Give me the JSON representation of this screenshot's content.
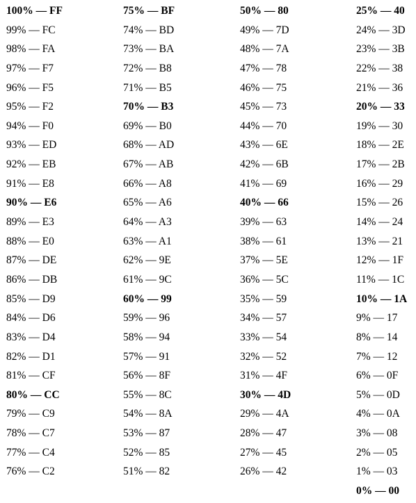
{
  "columns": [
    [
      {
        "text": "100% — FF",
        "bold": true
      },
      {
        "text": "99% — FC",
        "bold": false
      },
      {
        "text": "98% — FA",
        "bold": false
      },
      {
        "text": "97% — F7",
        "bold": false
      },
      {
        "text": "96% — F5",
        "bold": false
      },
      {
        "text": "95% — F2",
        "bold": false
      },
      {
        "text": "94% — F0",
        "bold": false
      },
      {
        "text": "93% — ED",
        "bold": false
      },
      {
        "text": "92% — EB",
        "bold": false
      },
      {
        "text": "91% — E8",
        "bold": false
      },
      {
        "text": "90% — E6",
        "bold": true
      },
      {
        "text": "89% — E3",
        "bold": false
      },
      {
        "text": "88% — E0",
        "bold": false
      },
      {
        "text": "87% — DE",
        "bold": false
      },
      {
        "text": "86% — DB",
        "bold": false
      },
      {
        "text": "85% — D9",
        "bold": false
      },
      {
        "text": "84% — D6",
        "bold": false
      },
      {
        "text": "83% — D4",
        "bold": false
      },
      {
        "text": "82% — D1",
        "bold": false
      },
      {
        "text": "81% — CF",
        "bold": false
      },
      {
        "text": "80% — CC",
        "bold": true
      },
      {
        "text": "79% — C9",
        "bold": false
      },
      {
        "text": "78% — C7",
        "bold": false
      },
      {
        "text": "77% — C4",
        "bold": false
      },
      {
        "text": "76% — C2",
        "bold": false
      }
    ],
    [
      {
        "text": "75% — BF",
        "bold": true
      },
      {
        "text": "74% — BD",
        "bold": false
      },
      {
        "text": "73% — BA",
        "bold": false
      },
      {
        "text": "72% — B8",
        "bold": false
      },
      {
        "text": "71% — B5",
        "bold": false
      },
      {
        "text": "70% — B3",
        "bold": true
      },
      {
        "text": "69% — B0",
        "bold": false
      },
      {
        "text": "68% — AD",
        "bold": false
      },
      {
        "text": "67% — AB",
        "bold": false
      },
      {
        "text": "66% — A8",
        "bold": false
      },
      {
        "text": "65% — A6",
        "bold": false
      },
      {
        "text": "64% — A3",
        "bold": false
      },
      {
        "text": "63% — A1",
        "bold": false
      },
      {
        "text": "62% — 9E",
        "bold": false
      },
      {
        "text": "61% — 9C",
        "bold": false
      },
      {
        "text": "60% — 99",
        "bold": true
      },
      {
        "text": "59% — 96",
        "bold": false
      },
      {
        "text": "58% — 94",
        "bold": false
      },
      {
        "text": "57% — 91",
        "bold": false
      },
      {
        "text": "56% — 8F",
        "bold": false
      },
      {
        "text": "55% — 8C",
        "bold": false
      },
      {
        "text": "54% — 8A",
        "bold": false
      },
      {
        "text": "53% — 87",
        "bold": false
      },
      {
        "text": "52% — 85",
        "bold": false
      },
      {
        "text": "51% — 82",
        "bold": false
      }
    ],
    [
      {
        "text": "50% — 80",
        "bold": true
      },
      {
        "text": "49% — 7D",
        "bold": false
      },
      {
        "text": "48% — 7A",
        "bold": false
      },
      {
        "text": "47% — 78",
        "bold": false
      },
      {
        "text": "46% — 75",
        "bold": false
      },
      {
        "text": "45% — 73",
        "bold": false
      },
      {
        "text": "44% — 70",
        "bold": false
      },
      {
        "text": "43% — 6E",
        "bold": false
      },
      {
        "text": "42% — 6B",
        "bold": false
      },
      {
        "text": "41% — 69",
        "bold": false
      },
      {
        "text": "40% — 66",
        "bold": true
      },
      {
        "text": "39% — 63",
        "bold": false
      },
      {
        "text": "38% — 61",
        "bold": false
      },
      {
        "text": "37% — 5E",
        "bold": false
      },
      {
        "text": "36% — 5C",
        "bold": false
      },
      {
        "text": "35% — 59",
        "bold": false
      },
      {
        "text": "34% — 57",
        "bold": false
      },
      {
        "text": "33% — 54",
        "bold": false
      },
      {
        "text": "32% — 52",
        "bold": false
      },
      {
        "text": "31% — 4F",
        "bold": false
      },
      {
        "text": "30% — 4D",
        "bold": true
      },
      {
        "text": "29% — 4A",
        "bold": false
      },
      {
        "text": "28% — 47",
        "bold": false
      },
      {
        "text": "27% — 45",
        "bold": false
      },
      {
        "text": "26% — 42",
        "bold": false
      }
    ],
    [
      {
        "text": "25% — 40",
        "bold": true
      },
      {
        "text": "24% — 3D",
        "bold": false
      },
      {
        "text": "23% — 3B",
        "bold": false
      },
      {
        "text": "22% — 38",
        "bold": false
      },
      {
        "text": "21% — 36",
        "bold": false
      },
      {
        "text": "20% — 33",
        "bold": true
      },
      {
        "text": "19% — 30",
        "bold": false
      },
      {
        "text": "18% — 2E",
        "bold": false
      },
      {
        "text": "17% — 2B",
        "bold": false
      },
      {
        "text": "16% — 29",
        "bold": false
      },
      {
        "text": "15% — 26",
        "bold": false
      },
      {
        "text": "14% — 24",
        "bold": false
      },
      {
        "text": "13% — 21",
        "bold": false
      },
      {
        "text": "12% — 1F",
        "bold": false
      },
      {
        "text": "11% — 1C",
        "bold": false
      },
      {
        "text": "10% — 1A",
        "bold": true
      },
      {
        "text": "9% — 17",
        "bold": false
      },
      {
        "text": "8% — 14",
        "bold": false
      },
      {
        "text": "7% — 12",
        "bold": false
      },
      {
        "text": "6% — 0F",
        "bold": false
      },
      {
        "text": "5% — 0D",
        "bold": false
      },
      {
        "text": "4% — 0A",
        "bold": false
      },
      {
        "text": "3% — 08",
        "bold": false
      },
      {
        "text": "2% — 05",
        "bold": false
      },
      {
        "text": "1% — 03",
        "bold": false
      },
      {
        "text": "0% — 00",
        "bold": true
      }
    ]
  ]
}
